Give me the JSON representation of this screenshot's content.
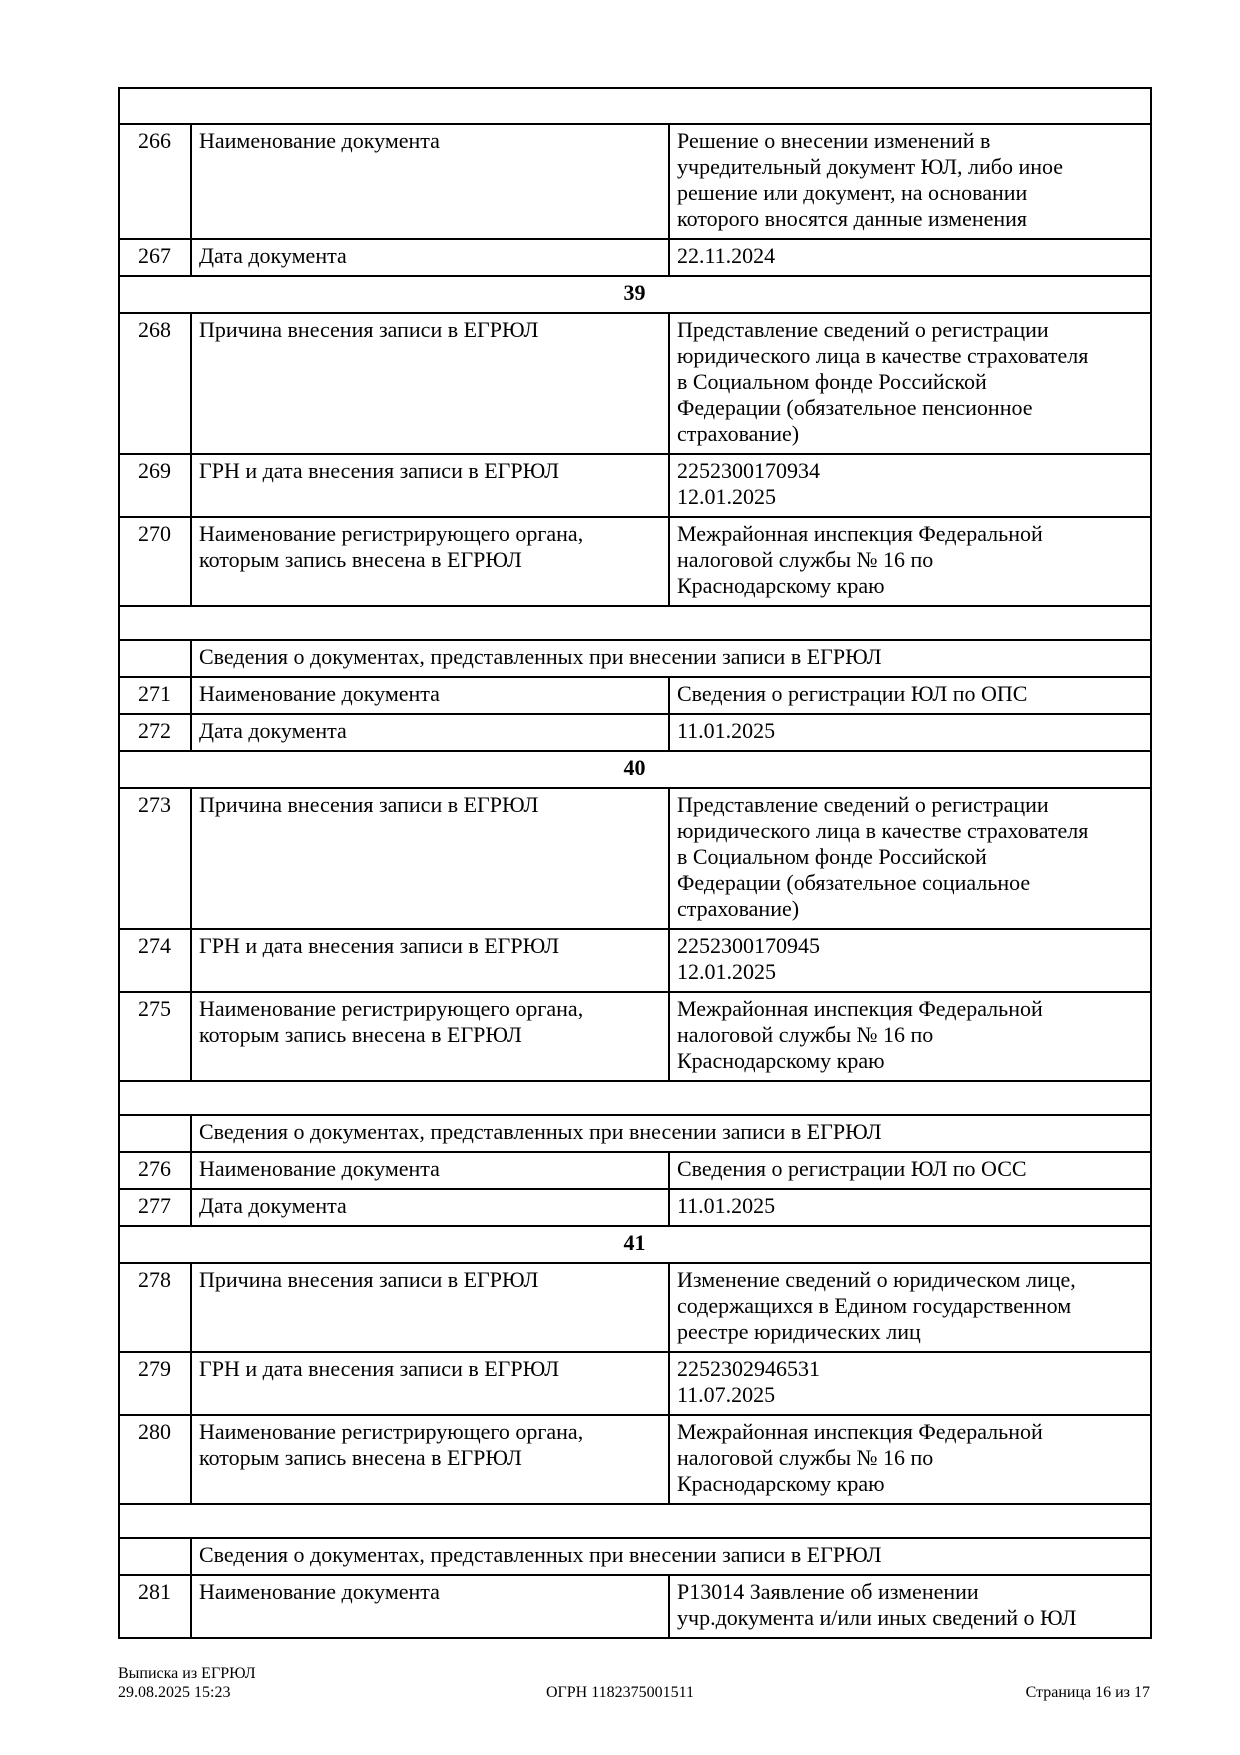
{
  "table": {
    "rows": [
      {
        "type": "empty"
      },
      {
        "type": "field",
        "num": "266",
        "label": "Наименование документа",
        "value": "Решение о внесении изменений в\nучредительный документ ЮЛ, либо иное\nрешение или документ, на основании\nкоторого вносятся данные изменения"
      },
      {
        "type": "field",
        "num": "267",
        "label": "Дата документа",
        "value": "22.11.2024",
        "sub": true
      },
      {
        "type": "section",
        "num": "39"
      },
      {
        "type": "field",
        "num": "268",
        "label": "Причина внесения записи в ЕГРЮЛ",
        "value": "Представление сведений о регистрации\nюридического лица в качестве страхователя\nв Социальном фонде Российской\nФедерации (обязательное пенсионное\nстрахование)"
      },
      {
        "type": "field",
        "num": "269",
        "label": "ГРН и дата внесения записи в ЕГРЮЛ",
        "value": "2252300170934\n12.01.2025"
      },
      {
        "type": "field",
        "num": "270",
        "label": "Наименование регистрирующего органа,\nкоторым запись внесена в ЕГРЮЛ",
        "value": "Межрайонная инспекция Федеральной\nналоговой службы № 16 по\nКраснодарскому краю"
      },
      {
        "type": "empty"
      },
      {
        "type": "header",
        "label": "Сведения о документах, представленных при внесении записи в ЕГРЮЛ"
      },
      {
        "type": "field",
        "num": "271",
        "label": "Наименование документа",
        "value": "Сведения о регистрации ЮЛ по ОПС"
      },
      {
        "type": "field",
        "num": "272",
        "label": "Дата документа",
        "value": "11.01.2025",
        "sub": true
      },
      {
        "type": "section",
        "num": "40"
      },
      {
        "type": "field",
        "num": "273",
        "label": "Причина внесения записи в ЕГРЮЛ",
        "value": "Представление сведений о регистрации\nюридического лица в качестве страхователя\nв Социальном фонде Российской\nФедерации (обязательное социальное\nстрахование)"
      },
      {
        "type": "field",
        "num": "274",
        "label": "ГРН и дата внесения записи в ЕГРЮЛ",
        "value": "2252300170945\n12.01.2025"
      },
      {
        "type": "field",
        "num": "275",
        "label": "Наименование регистрирующего органа,\nкоторым запись внесена в ЕГРЮЛ",
        "value": "Межрайонная инспекция Федеральной\nналоговой службы № 16 по\nКраснодарскому краю"
      },
      {
        "type": "empty"
      },
      {
        "type": "header",
        "label": "Сведения о документах, представленных при внесении записи в ЕГРЮЛ"
      },
      {
        "type": "field",
        "num": "276",
        "label": "Наименование документа",
        "value": "Сведения о регистрации ЮЛ по ОСС"
      },
      {
        "type": "field",
        "num": "277",
        "label": "Дата документа",
        "value": "11.01.2025",
        "sub": true
      },
      {
        "type": "section",
        "num": "41"
      },
      {
        "type": "field",
        "num": "278",
        "label": "Причина внесения записи в ЕГРЮЛ",
        "value": "Изменение сведений о юридическом лице,\nсодержащихся в Едином государственном\nреестре юридических лиц"
      },
      {
        "type": "field",
        "num": "279",
        "label": "ГРН и дата внесения записи в ЕГРЮЛ",
        "value": "2252302946531\n11.07.2025"
      },
      {
        "type": "field",
        "num": "280",
        "label": "Наименование регистрирующего органа,\nкоторым запись внесена в ЕГРЮЛ",
        "value": "Межрайонная инспекция Федеральной\nналоговой службы № 16 по\nКраснодарскому краю"
      },
      {
        "type": "empty"
      },
      {
        "type": "header",
        "label": "Сведения о документах, представленных при внесении записи в ЕГРЮЛ"
      },
      {
        "type": "field",
        "num": "281",
        "label": "Наименование документа",
        "value": "Р13014 Заявление об изменении\nучр.документа и/или иных сведений о ЮЛ"
      }
    ]
  },
  "footer": {
    "title": "Выписка из ЕГРЮЛ",
    "generated": "29.08.2025 15:23",
    "ogrn": "ОГРН 1182375001511",
    "page": "Страница 16 из 17"
  }
}
